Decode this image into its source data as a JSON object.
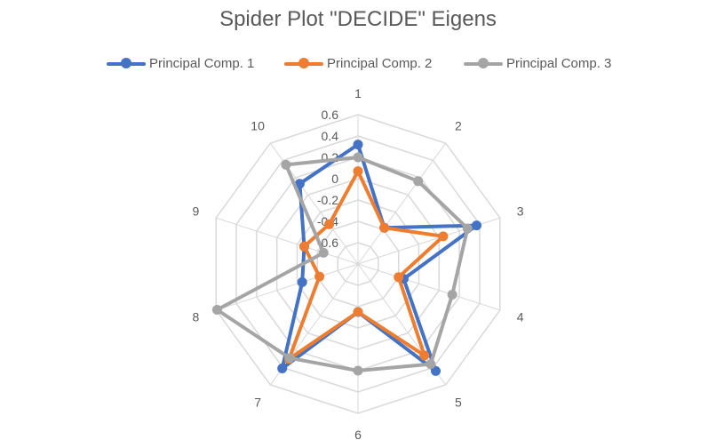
{
  "chart_data": {
    "type": "radar",
    "title": "Spider Plot \"DECIDE\" Eigens",
    "categories": [
      "1",
      "2",
      "3",
      "4",
      "5",
      "6",
      "7",
      "8",
      "9",
      "10"
    ],
    "rlim": [
      -0.8,
      0.6
    ],
    "radial_ticks": [
      -0.6,
      -0.4,
      -0.2,
      0,
      0.2,
      0.4,
      0.6
    ],
    "radial_tick_labels": [
      "-0.6",
      "-0.4",
      "-0.2",
      "0",
      "0.2",
      "0.4",
      "0.6"
    ],
    "grid": true,
    "legend_position": "top",
    "series": [
      {
        "name": "Principal Comp. 1",
        "color": "#4472c4",
        "values": [
          0.32,
          -0.38,
          0.37,
          -0.35,
          0.44,
          -0.35,
          0.41,
          -0.25,
          -0.27,
          0.13
        ]
      },
      {
        "name": "Principal Comp. 2",
        "color": "#ed7d31",
        "values": [
          0.07,
          -0.38,
          0.04,
          -0.4,
          0.26,
          -0.35,
          0.3,
          -0.42,
          -0.27,
          -0.34
        ]
      },
      {
        "name": "Principal Comp. 3",
        "color": "#a5a5a5",
        "values": [
          0.2,
          0.16,
          0.28,
          0.13,
          0.36,
          0.2,
          0.29,
          0.59,
          -0.46,
          0.35
        ]
      }
    ]
  }
}
